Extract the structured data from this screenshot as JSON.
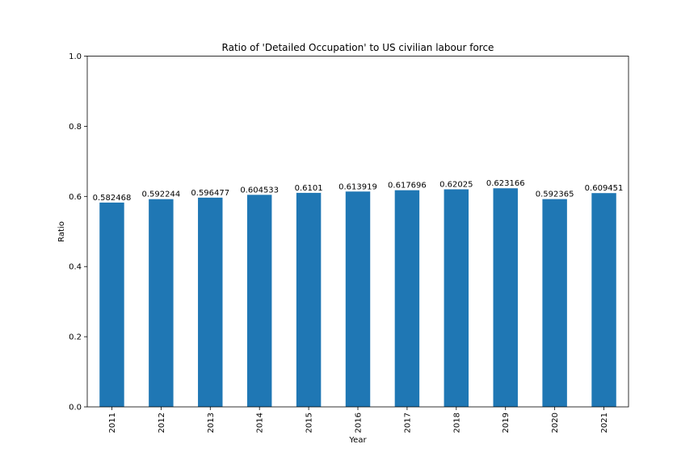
{
  "chart_data": {
    "type": "bar",
    "title": "Ratio of 'Detailed Occupation' to US civilian labour force",
    "xlabel": "Year",
    "ylabel": "Ratio",
    "ylim": [
      0,
      1.0
    ],
    "yticks": [
      "0.0",
      "0.2",
      "0.4",
      "0.6",
      "0.8",
      "1.0"
    ],
    "categories": [
      "2011",
      "2012",
      "2013",
      "2014",
      "2015",
      "2016",
      "2017",
      "2018",
      "2019",
      "2020",
      "2021"
    ],
    "values": [
      0.582468,
      0.592244,
      0.596477,
      0.604533,
      0.6101,
      0.613919,
      0.617696,
      0.62025,
      0.623166,
      0.592365,
      0.609451
    ],
    "data_labels": [
      "0.582468",
      "0.592244",
      "0.596477",
      "0.604533",
      "0.6101",
      "0.613919",
      "0.617696",
      "0.62025",
      "0.623166",
      "0.592365",
      "0.609451"
    ],
    "bar_color": "#1f77b4",
    "grid": false,
    "legend": "none"
  }
}
